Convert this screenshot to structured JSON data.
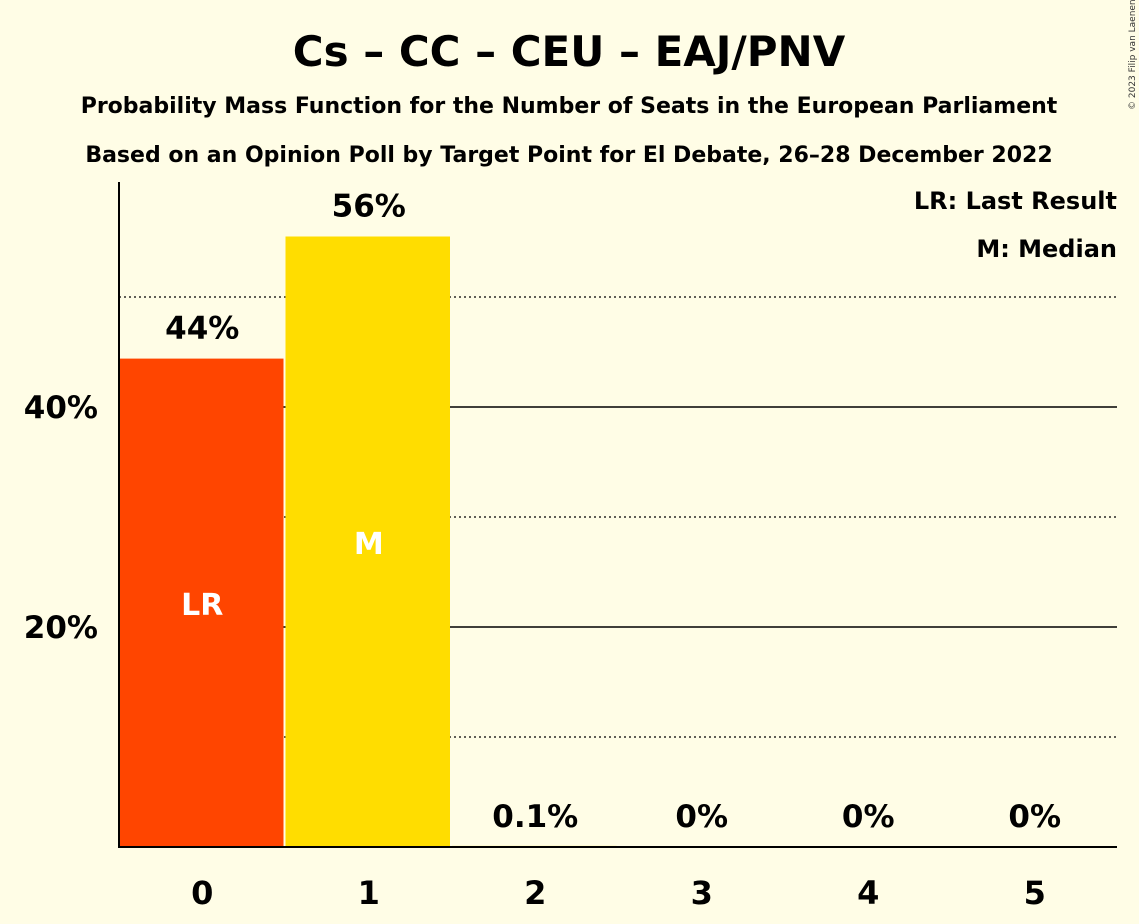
{
  "chart_data": {
    "type": "bar",
    "title": "Cs – CC – CEU – EAJ/PNV",
    "subtitle": "Probability Mass Function for the Number of Seats in the European Parliament",
    "subtitle2": "Based on an Opinion Poll by Target Point for El Debate, 26–28 December 2022",
    "categories": [
      "0",
      "1",
      "2",
      "3",
      "4",
      "5"
    ],
    "values": [
      44.4,
      55.5,
      0.1,
      0,
      0,
      0
    ],
    "data_labels": [
      "44%",
      "56%",
      "0.1%",
      "0%",
      "0%",
      "0%"
    ],
    "bar_colors": [
      "#FF4500",
      "#FFDD00",
      "#FFDD00",
      "#FFDD00",
      "#FFDD00",
      "#FFDD00"
    ],
    "bar_inner_labels": [
      "LR",
      "M",
      "",
      "",
      "",
      ""
    ],
    "ylim": [
      0,
      60
    ],
    "yticks": [
      {
        "value": 20,
        "label": "20%"
      },
      {
        "value": 40,
        "label": "40%"
      }
    ],
    "minor_gridlines": [
      10,
      30,
      50
    ],
    "major_gridlines": [
      20,
      40
    ],
    "legend": [
      "LR: Last Result",
      "M: Median"
    ],
    "legend_position": "top-right",
    "copyright": "© 2023 Filip van Laenen"
  }
}
